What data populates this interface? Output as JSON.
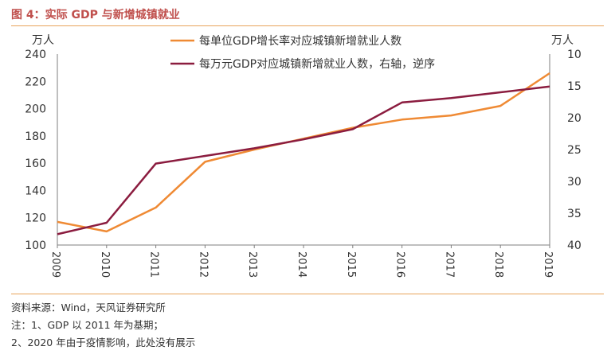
{
  "figure": {
    "title": "图 4：实际 GDP 与新增城镇就业",
    "notes": [
      "资料来源：Wind，天风证券研究所",
      "注：1、GDP 以 2011 年为基期；",
      "2、2020 年由于疫情影响，此处没有展示"
    ]
  },
  "colors": {
    "title": "#c0504d",
    "rule": "#e8a35a",
    "series1": "#ef8a34",
    "series2": "#8b1c3f",
    "axis": "#7f7f7f"
  },
  "chart_data": {
    "type": "line",
    "title": "",
    "x": [
      "2009",
      "2010",
      "2011",
      "2012",
      "2013",
      "2014",
      "2015",
      "2016",
      "2017",
      "2018",
      "2019"
    ],
    "ylabel_left": "万人",
    "ylabel_right": "万人",
    "ylim_left": [
      100,
      240
    ],
    "yticks_left": [
      "240",
      "220",
      "200",
      "180",
      "160",
      "140",
      "120",
      "100"
    ],
    "ylim_right": [
      10,
      40
    ],
    "yticks_right": [
      "10",
      "15",
      "20",
      "25",
      "30",
      "35",
      "40"
    ],
    "right_axis_reversed": true,
    "grid": false,
    "legend_position": "top-center",
    "series": [
      {
        "name": "每单位GDP增长率对应城镇新增就业人数",
        "axis": "left",
        "values": [
          117,
          110,
          127.5,
          161,
          170,
          178,
          186,
          192,
          195,
          202,
          226
        ]
      },
      {
        "name": "每万元GDP对应城镇新增就业人数，右轴，逆序",
        "axis": "right",
        "values": [
          38.3,
          36.5,
          27.2,
          26.0,
          24.8,
          23.4,
          21.8,
          17.6,
          16.9,
          16.0,
          15.1
        ]
      }
    ]
  }
}
